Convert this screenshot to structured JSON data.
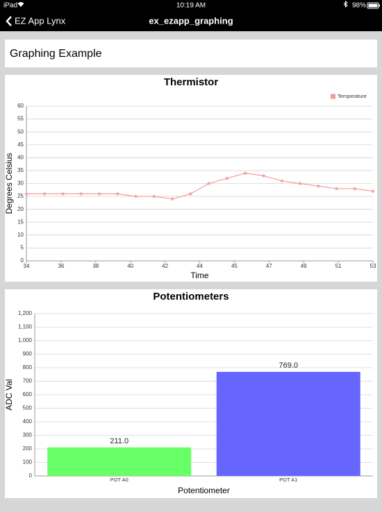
{
  "status_bar": {
    "device": "iPad",
    "time": "10:19 AM",
    "battery": "98%"
  },
  "nav_bar": {
    "back": "EZ App Lynx",
    "title": "ex_ezapp_graphing"
  },
  "header": {
    "title": "Graphing Example"
  },
  "chart_data": [
    {
      "type": "line",
      "title": "Thermistor",
      "x_label": "Time",
      "y_label": "Degrees Celsius",
      "x": [
        34,
        35,
        36,
        37,
        38,
        39,
        40,
        41,
        42,
        43,
        44,
        45,
        46,
        47,
        48,
        49,
        50,
        51,
        52,
        53
      ],
      "series": [
        {
          "name": "Temperature",
          "color": "#f29a9a",
          "values": [
            26,
            26,
            26,
            26,
            26,
            26,
            25,
            25,
            24,
            26,
            30,
            32,
            34,
            33,
            31,
            30,
            29,
            28,
            28,
            27
          ]
        }
      ],
      "xlim": [
        34,
        53
      ],
      "xticks": [
        34,
        {
          "value": 35.9,
          "label": "36"
        },
        {
          "value": 37.8,
          "label": "38"
        },
        {
          "value": 39.7,
          "label": "40"
        },
        {
          "value": 41.6,
          "label": "42"
        },
        {
          "value": 43.5,
          "label": "44"
        },
        {
          "value": 45.4,
          "label": "45"
        },
        {
          "value": 47.3,
          "label": "47"
        },
        {
          "value": 49.2,
          "label": "49"
        },
        {
          "value": 51.1,
          "label": "51"
        },
        53
      ],
      "ylim": [
        0,
        60
      ],
      "yticks": [
        0,
        5,
        10,
        15,
        20,
        25,
        30,
        35,
        40,
        45,
        50,
        55,
        60
      ],
      "grid": true,
      "legend": "top-right"
    },
    {
      "type": "bar",
      "title": "Potentiometers",
      "x_label": "Potentiometer",
      "y_label": "ADC Val",
      "categories": [
        "POT A0",
        "POT A1"
      ],
      "values": [
        211,
        769
      ],
      "value_labels": [
        "211.0",
        "769.0"
      ],
      "colors": [
        "#66ff66",
        "#6666ff"
      ],
      "ylim": [
        0,
        1200
      ],
      "yticks": [
        0,
        100,
        200,
        300,
        400,
        500,
        600,
        700,
        800,
        900,
        {
          "value": 1000,
          "label": "1,000"
        },
        {
          "value": 1100,
          "label": "1,100"
        },
        {
          "value": 1200,
          "label": "1,200"
        }
      ],
      "grid": true
    }
  ]
}
